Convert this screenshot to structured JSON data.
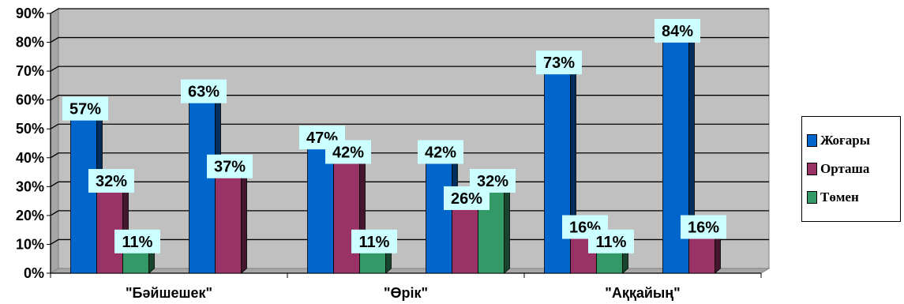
{
  "chart_data": {
    "type": "bar",
    "categories": [
      "\"Бәйшешек\"",
      "",
      "\"Өрік\"",
      "",
      "\"Аққайың\"",
      ""
    ],
    "category_tick_labels": [
      "\"Бәйшешек\"",
      "\"Өрік\"",
      "\"Аққайың\""
    ],
    "series": [
      {
        "name": "Жоғары",
        "values": [
          57,
          63,
          47,
          42,
          73,
          84
        ],
        "labels": [
          "57%",
          "63%",
          "47%",
          "42%",
          "73%",
          "84%"
        ],
        "color": "#0066cc"
      },
      {
        "name": "Орташа",
        "values": [
          32,
          37,
          42,
          26,
          16,
          16
        ],
        "labels": [
          "32%",
          "37%",
          "42%",
          "26%",
          "16%",
          "16%"
        ],
        "color": "#993366"
      },
      {
        "name": "Төмен",
        "values": [
          11,
          null,
          11,
          32,
          11,
          null
        ],
        "labels": [
          "11%",
          "",
          "11%",
          "32%",
          "11%",
          ""
        ],
        "color": "#339966"
      }
    ],
    "y_ticks": [
      "0%",
      "10%",
      "20%",
      "30%",
      "40%",
      "50%",
      "60%",
      "70%",
      "80%",
      "90%"
    ],
    "ylim": [
      0,
      90
    ],
    "grid": true,
    "legend_position": "right",
    "plot_background": "#c0c0c0",
    "label_background": "#ccffff"
  }
}
